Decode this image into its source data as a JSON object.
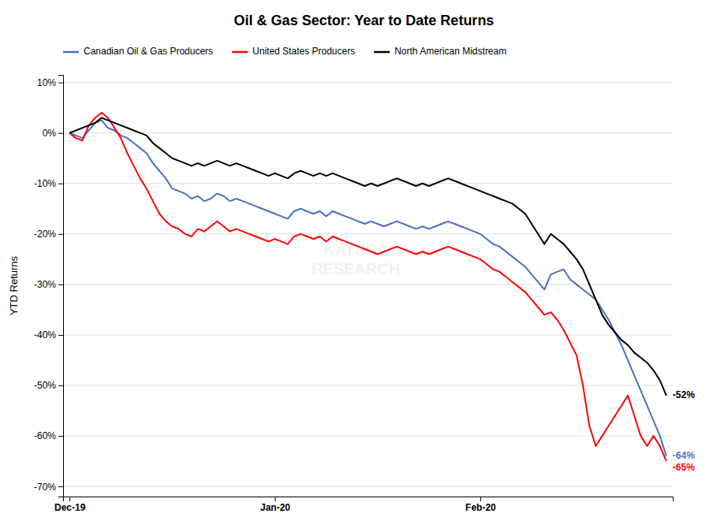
{
  "chart_data": {
    "type": "line",
    "title": "Oil & Gas Sector: Year to Date Returns",
    "y_label": "YTD Returns",
    "grid": true,
    "legend": "top",
    "categories": [
      "Dec-19",
      null,
      null,
      null,
      null,
      null,
      null,
      null,
      null,
      null,
      null,
      null,
      null,
      null,
      null,
      null,
      null,
      null,
      null,
      null,
      null,
      null,
      null,
      null,
      null,
      null,
      null,
      null,
      null,
      null,
      null,
      null,
      "Jan-20",
      null,
      null,
      null,
      null,
      null,
      null,
      null,
      null,
      null,
      null,
      null,
      null,
      null,
      null,
      null,
      null,
      null,
      null,
      null,
      null,
      null,
      null,
      null,
      null,
      null,
      null,
      null,
      null,
      null,
      null,
      null,
      "Feb-20",
      null,
      null,
      null,
      null,
      null,
      null,
      null,
      null,
      null,
      null,
      null,
      null,
      null,
      null,
      null,
      null,
      null,
      null,
      null,
      null,
      null,
      null,
      null,
      null,
      null,
      null,
      null,
      null,
      null
    ],
    "series": [
      {
        "name": "Canadian Oil & Gas Producers",
        "color": "#4472C4",
        "values": [
          0.0,
          -0.005,
          -0.01,
          0.005,
          0.02,
          0.025,
          0.01,
          0.005,
          -0.005,
          -0.01,
          -0.02,
          -0.03,
          -0.04,
          -0.06,
          -0.075,
          -0.09,
          -0.11,
          -0.115,
          -0.12,
          -0.13,
          -0.125,
          -0.135,
          -0.13,
          -0.12,
          -0.125,
          -0.135,
          -0.13,
          -0.135,
          -0.14,
          -0.145,
          -0.15,
          -0.155,
          -0.16,
          -0.165,
          -0.17,
          -0.155,
          -0.15,
          -0.155,
          -0.16,
          -0.155,
          -0.165,
          -0.155,
          -0.16,
          -0.165,
          -0.17,
          -0.175,
          -0.18,
          -0.175,
          -0.18,
          -0.185,
          -0.18,
          -0.175,
          -0.18,
          -0.185,
          -0.19,
          -0.185,
          -0.19,
          -0.185,
          -0.18,
          -0.175,
          -0.18,
          -0.185,
          -0.19,
          -0.195,
          -0.2,
          -0.21,
          -0.22,
          -0.225,
          -0.235,
          -0.245,
          -0.255,
          -0.265,
          -0.28,
          -0.295,
          -0.31,
          -0.28,
          -0.275,
          -0.27,
          -0.29,
          -0.3,
          -0.31,
          -0.32,
          -0.33,
          -0.35,
          -0.37,
          -0.395,
          -0.42,
          -0.45,
          -0.48,
          -0.51,
          -0.54,
          -0.57,
          -0.6,
          -0.64
        ],
        "value_labels": [
          null,
          null,
          null,
          null,
          null,
          null,
          null,
          null,
          null,
          null,
          null,
          null,
          null,
          null,
          null,
          null,
          null,
          null,
          null,
          null,
          null,
          null,
          null,
          null,
          null,
          null,
          null,
          null,
          null,
          null,
          null,
          null,
          null,
          null,
          null,
          null,
          null,
          null,
          null,
          null,
          null,
          null,
          null,
          null,
          null,
          null,
          null,
          null,
          null,
          null,
          null,
          null,
          null,
          null,
          null,
          null,
          null,
          null,
          null,
          null,
          null,
          null,
          null,
          null,
          null,
          null,
          null,
          null,
          null,
          null,
          null,
          null,
          null,
          null,
          null,
          null,
          null,
          null,
          null,
          null,
          null,
          null,
          null,
          null,
          null,
          null,
          null,
          null,
          null,
          null,
          null,
          null,
          null,
          "-64%"
        ]
      },
      {
        "name": "United States Producers",
        "color": "#FF0000",
        "values": [
          0.0,
          -0.01,
          -0.015,
          0.015,
          0.03,
          0.04,
          0.03,
          0.01,
          -0.01,
          -0.04,
          -0.065,
          -0.09,
          -0.11,
          -0.135,
          -0.16,
          -0.175,
          -0.185,
          -0.19,
          -0.2,
          -0.205,
          -0.19,
          -0.195,
          -0.185,
          -0.175,
          -0.185,
          -0.195,
          -0.19,
          -0.195,
          -0.2,
          -0.205,
          -0.21,
          -0.215,
          -0.21,
          -0.215,
          -0.22,
          -0.205,
          -0.2,
          -0.205,
          -0.21,
          -0.205,
          -0.215,
          -0.205,
          -0.21,
          -0.215,
          -0.22,
          -0.225,
          -0.23,
          -0.235,
          -0.24,
          -0.235,
          -0.23,
          -0.225,
          -0.23,
          -0.235,
          -0.24,
          -0.235,
          -0.24,
          -0.235,
          -0.23,
          -0.225,
          -0.23,
          -0.235,
          -0.24,
          -0.245,
          -0.25,
          -0.26,
          -0.27,
          -0.275,
          -0.285,
          -0.295,
          -0.305,
          -0.315,
          -0.33,
          -0.345,
          -0.36,
          -0.355,
          -0.37,
          -0.39,
          -0.415,
          -0.44,
          -0.5,
          -0.58,
          -0.62,
          -0.6,
          -0.58,
          -0.56,
          -0.54,
          -0.52,
          -0.56,
          -0.6,
          -0.62,
          -0.6,
          -0.62,
          -0.65
        ],
        "value_labels": [
          null,
          null,
          null,
          null,
          null,
          null,
          null,
          null,
          null,
          null,
          null,
          null,
          null,
          null,
          null,
          null,
          null,
          null,
          null,
          null,
          null,
          null,
          null,
          null,
          null,
          null,
          null,
          null,
          null,
          null,
          null,
          null,
          null,
          null,
          null,
          null,
          null,
          null,
          null,
          null,
          null,
          null,
          null,
          null,
          null,
          null,
          null,
          null,
          null,
          null,
          null,
          null,
          null,
          null,
          null,
          null,
          null,
          null,
          null,
          null,
          null,
          null,
          null,
          null,
          null,
          null,
          null,
          null,
          null,
          null,
          null,
          null,
          null,
          null,
          null,
          null,
          null,
          null,
          null,
          null,
          null,
          null,
          null,
          null,
          null,
          null,
          null,
          null,
          null,
          null,
          null,
          null,
          null,
          "-65%"
        ]
      },
      {
        "name": "North American Midstream",
        "color": "#000000",
        "values": [
          0.0,
          0.005,
          0.01,
          0.015,
          0.02,
          0.03,
          0.025,
          0.02,
          0.015,
          0.01,
          0.005,
          0.0,
          -0.005,
          -0.02,
          -0.03,
          -0.04,
          -0.05,
          -0.055,
          -0.06,
          -0.065,
          -0.06,
          -0.065,
          -0.06,
          -0.055,
          -0.06,
          -0.065,
          -0.06,
          -0.065,
          -0.07,
          -0.075,
          -0.08,
          -0.085,
          -0.08,
          -0.085,
          -0.09,
          -0.08,
          -0.075,
          -0.08,
          -0.085,
          -0.08,
          -0.085,
          -0.08,
          -0.085,
          -0.09,
          -0.095,
          -0.1,
          -0.105,
          -0.1,
          -0.105,
          -0.1,
          -0.095,
          -0.09,
          -0.095,
          -0.1,
          -0.105,
          -0.1,
          -0.105,
          -0.1,
          -0.095,
          -0.09,
          -0.095,
          -0.1,
          -0.105,
          -0.11,
          -0.115,
          -0.12,
          -0.125,
          -0.13,
          -0.135,
          -0.14,
          -0.15,
          -0.16,
          -0.18,
          -0.2,
          -0.22,
          -0.2,
          -0.21,
          -0.22,
          -0.235,
          -0.25,
          -0.27,
          -0.3,
          -0.33,
          -0.36,
          -0.38,
          -0.395,
          -0.41,
          -0.42,
          -0.435,
          -0.445,
          -0.455,
          -0.47,
          -0.49,
          -0.52
        ],
        "value_labels": [
          null,
          null,
          null,
          null,
          null,
          null,
          null,
          null,
          null,
          null,
          null,
          null,
          null,
          null,
          null,
          null,
          null,
          null,
          null,
          null,
          null,
          null,
          null,
          null,
          null,
          null,
          null,
          null,
          null,
          null,
          null,
          null,
          null,
          null,
          null,
          null,
          null,
          null,
          null,
          null,
          null,
          null,
          null,
          null,
          null,
          null,
          null,
          null,
          null,
          null,
          null,
          null,
          null,
          null,
          null,
          null,
          null,
          null,
          null,
          null,
          null,
          null,
          null,
          null,
          null,
          null,
          null,
          null,
          null,
          null,
          null,
          null,
          null,
          null,
          null,
          null,
          null,
          null,
          null,
          null,
          null,
          null,
          null,
          null,
          null,
          null,
          null,
          null,
          null,
          null,
          null,
          null,
          null,
          "-52%"
        ]
      }
    ],
    "ylim": [
      -0.72,
      0.115
    ],
    "yticks": [
      {
        "value": 0.1,
        "label": "10%"
      },
      {
        "value": 0.0,
        "label": "0%"
      },
      {
        "value": -0.1,
        "label": "-10%"
      },
      {
        "value": -0.2,
        "label": "-20%"
      },
      {
        "value": -0.3,
        "label": "-30%"
      },
      {
        "value": -0.4,
        "label": "-40%"
      },
      {
        "value": -0.5,
        "label": "-50%"
      },
      {
        "value": -0.6,
        "label": "-60%"
      },
      {
        "value": -0.7,
        "label": "-70%"
      }
    ],
    "annotations": [
      {
        "text": "KATUSA\nRESEARCH",
        "color": "#aaaaaa"
      }
    ]
  }
}
